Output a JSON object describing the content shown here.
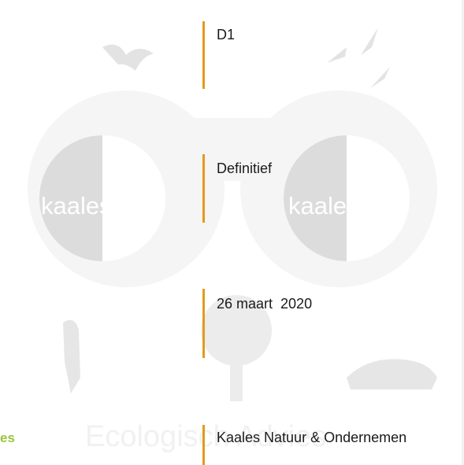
{
  "fields": {
    "version": "D1",
    "status": "Definitief",
    "date": "26 maart  2020",
    "organisation": "Kaales Natuur & Ondernemen"
  },
  "brand_fragment": "es",
  "watermark": {
    "logo_left": "kaales",
    "logo_right": "kaales",
    "tagline": "Ecologisch Advies"
  }
}
